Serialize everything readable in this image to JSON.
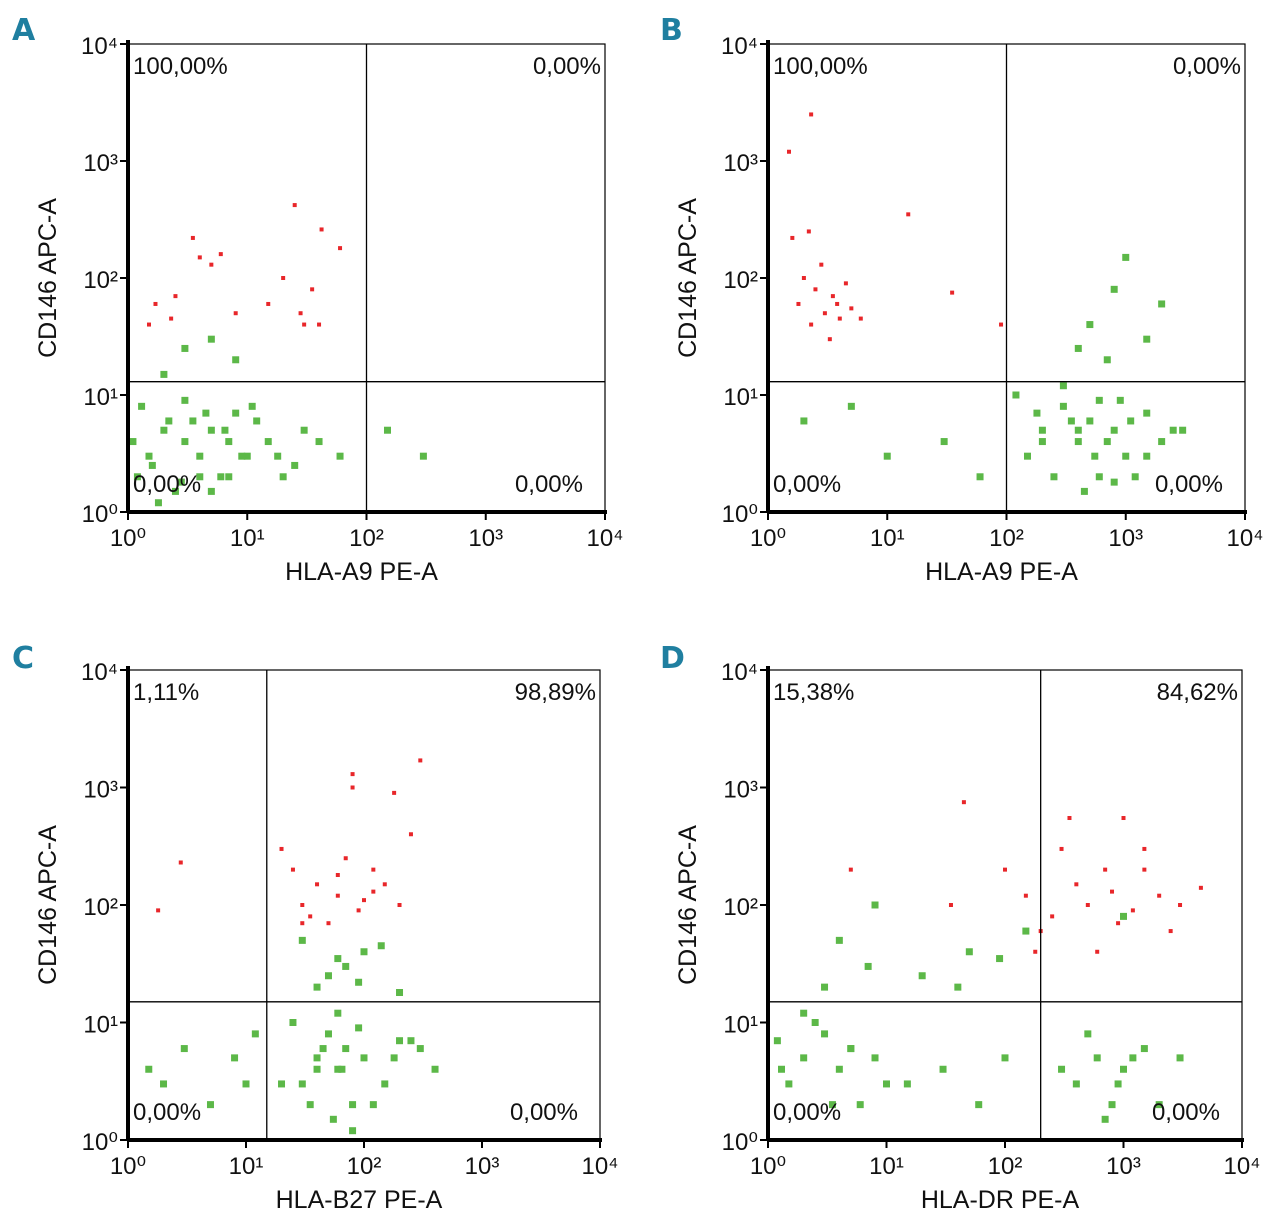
{
  "chart_data": [
    {
      "type": "scatter",
      "panel": "A",
      "xlabel": "HLA-A9 PE-A",
      "ylabel": "CD146 APC-A",
      "xscale": "log",
      "yscale": "log",
      "xlim": [
        1,
        10000
      ],
      "ylim": [
        1,
        10000
      ],
      "xticks": [
        {
          "value": 1,
          "label": "10⁰"
        },
        {
          "value": 10,
          "label": "10¹"
        },
        {
          "value": 100,
          "label": "10²"
        },
        {
          "value": 1000,
          "label": "10³"
        },
        {
          "value": 10000,
          "label": "10⁴"
        }
      ],
      "yticks": [
        {
          "value": 1,
          "label": "10⁰"
        },
        {
          "value": 10,
          "label": "10¹"
        },
        {
          "value": 100,
          "label": "10²"
        },
        {
          "value": 1000,
          "label": "10³"
        },
        {
          "value": 10000,
          "label": "10⁴"
        }
      ],
      "gate_x": 100,
      "gate_y": 13,
      "quadrant_labels": {
        "upper_left": "100,00%",
        "upper_right": "0,00%",
        "lower_left": "0,00%",
        "lower_right": "0,00%"
      },
      "series": [
        {
          "color": "#5cb848",
          "x": [
            1.2,
            1.5,
            2,
            2.5,
            3,
            3.5,
            4,
            5,
            6,
            7,
            8,
            10,
            1.3,
            1.8,
            2.2,
            3,
            4,
            5,
            6.5,
            9,
            12,
            15,
            20,
            30,
            1.1,
            1.6,
            2.8,
            4.5,
            7,
            11,
            18,
            25,
            40,
            60,
            3,
            5,
            2,
            8,
            150,
            300
          ],
          "y": [
            2,
            3,
            5,
            1.5,
            4,
            6,
            3,
            5,
            2,
            4,
            7,
            3,
            8,
            1.2,
            6,
            9,
            2,
            1.5,
            5,
            3,
            6,
            4,
            2,
            5,
            4,
            2.5,
            1.8,
            7,
            2,
            8,
            3,
            2.5,
            4,
            3,
            25,
            30,
            15,
            20,
            5,
            3
          ]
        },
        {
          "color": "#e8262a",
          "x": [
            1.7,
            2.5,
            3.5,
            4,
            5,
            6,
            8,
            15,
            20,
            25,
            28,
            30,
            35,
            40,
            42,
            60,
            1.5,
            2.3
          ],
          "y": [
            60,
            70,
            220,
            150,
            130,
            160,
            50,
            60,
            100,
            420,
            50,
            40,
            80,
            40,
            260,
            180,
            40,
            45
          ]
        }
      ]
    },
    {
      "type": "scatter",
      "panel": "B",
      "xlabel": "HLA-A9 PE-A",
      "ylabel": "CD146 APC-A",
      "xscale": "log",
      "yscale": "log",
      "xlim": [
        1,
        10000
      ],
      "ylim": [
        1,
        10000
      ],
      "xticks": [
        {
          "value": 1,
          "label": "10⁰"
        },
        {
          "value": 10,
          "label": "10¹"
        },
        {
          "value": 100,
          "label": "10²"
        },
        {
          "value": 1000,
          "label": "10³"
        },
        {
          "value": 10000,
          "label": "10⁴"
        }
      ],
      "yticks": [
        {
          "value": 1,
          "label": "10⁰"
        },
        {
          "value": 10,
          "label": "10¹"
        },
        {
          "value": 100,
          "label": "10²"
        },
        {
          "value": 1000,
          "label": "10³"
        },
        {
          "value": 10000,
          "label": "10⁴"
        }
      ],
      "gate_x": 100,
      "gate_y": 13,
      "quadrant_labels": {
        "upper_left": "100,00%",
        "upper_right": "0,00%",
        "lower_left": "0,00%",
        "lower_right": "0,00%"
      },
      "series": [
        {
          "color": "#5cb848",
          "x": [
            150,
            200,
            300,
            400,
            500,
            600,
            800,
            1000,
            1500,
            2000,
            120,
            250,
            350,
            450,
            700,
            900,
            1200,
            2500,
            180,
            550,
            800,
            300,
            1100,
            400,
            600,
            200,
            1500,
            3000,
            5,
            10,
            30,
            60,
            2,
            500,
            800,
            1500,
            2000,
            1000,
            700,
            400
          ],
          "y": [
            3,
            5,
            8,
            4,
            6,
            2,
            5,
            3,
            7,
            4,
            10,
            2,
            6,
            1.5,
            4,
            9,
            2,
            5,
            7,
            3,
            1.8,
            12,
            6,
            5,
            9,
            4,
            3,
            5,
            8,
            3,
            4,
            2,
            6,
            40,
            80,
            30,
            60,
            150,
            20,
            25
          ]
        },
        {
          "color": "#e8262a",
          "x": [
            1.6,
            1.8,
            2,
            2.3,
            2.5,
            2.8,
            3,
            3.3,
            3.5,
            4,
            4.5,
            5,
            6,
            2.2,
            3.8,
            2.3,
            1.5,
            15,
            35,
            90
          ],
          "y": [
            220,
            60,
            100,
            40,
            80,
            130,
            50,
            30,
            70,
            45,
            90,
            55,
            45,
            250,
            60,
            2500,
            1200,
            350,
            75,
            40
          ]
        }
      ]
    },
    {
      "type": "scatter",
      "panel": "C",
      "xlabel": "HLA-B27 PE-A",
      "ylabel": "CD146 APC-A",
      "xscale": "log",
      "yscale": "log",
      "xlim": [
        1,
        10000
      ],
      "ylim": [
        1,
        10000
      ],
      "xticks": [
        {
          "value": 1,
          "label": "10⁰"
        },
        {
          "value": 10,
          "label": "10¹"
        },
        {
          "value": 100,
          "label": "10²"
        },
        {
          "value": 1000,
          "label": "10³"
        },
        {
          "value": 10000,
          "label": "10⁴"
        }
      ],
      "yticks": [
        {
          "value": 1,
          "label": "10⁰"
        },
        {
          "value": 10,
          "label": "10¹"
        },
        {
          "value": 100,
          "label": "10²"
        },
        {
          "value": 1000,
          "label": "10³"
        },
        {
          "value": 10000,
          "label": "10⁴"
        }
      ],
      "gate_x": 15,
      "gate_y": 15,
      "quadrant_labels": {
        "upper_left": "1,11%",
        "upper_right": "98,89%",
        "lower_left": "0,00%",
        "lower_right": "0,00%"
      },
      "series": [
        {
          "color": "#5cb848",
          "x": [
            30,
            40,
            50,
            60,
            70,
            80,
            100,
            150,
            200,
            25,
            35,
            45,
            55,
            65,
            90,
            120,
            180,
            250,
            20,
            60,
            80,
            40,
            300,
            2,
            3,
            5,
            8,
            1.5,
            10,
            12,
            50,
            70,
            100,
            40,
            200,
            30,
            60,
            90,
            140,
            400
          ],
          "y": [
            3,
            5,
            8,
            4,
            6,
            2,
            5,
            3,
            7,
            10,
            2,
            6,
            1.5,
            4,
            9,
            2,
            5,
            7,
            3,
            12,
            1.2,
            4,
            6,
            3,
            6,
            2,
            5,
            4,
            3,
            8,
            25,
            30,
            40,
            20,
            18,
            50,
            35,
            22,
            45,
            4
          ]
        },
        {
          "color": "#e8262a",
          "x": [
            20,
            25,
            30,
            35,
            40,
            50,
            60,
            70,
            80,
            90,
            100,
            120,
            150,
            180,
            200,
            250,
            300,
            30,
            60,
            120,
            80,
            1.8,
            2.8
          ],
          "y": [
            300,
            200,
            100,
            80,
            150,
            70,
            120,
            250,
            1300,
            90,
            110,
            200,
            150,
            900,
            100,
            400,
            1700,
            70,
            180,
            130,
            1000,
            90,
            230
          ]
        }
      ]
    },
    {
      "type": "scatter",
      "panel": "D",
      "xlabel": "HLA-DR PE-A",
      "ylabel": "CD146 APC-A",
      "xscale": "log",
      "yscale": "log",
      "xlim": [
        1,
        10000
      ],
      "ylim": [
        1,
        10000
      ],
      "xticks": [
        {
          "value": 1,
          "label": "10⁰"
        },
        {
          "value": 10,
          "label": "10¹"
        },
        {
          "value": 100,
          "label": "10²"
        },
        {
          "value": 1000,
          "label": "10³"
        },
        {
          "value": 10000,
          "label": "10⁴"
        }
      ],
      "yticks": [
        {
          "value": 1,
          "label": "10⁰"
        },
        {
          "value": 10,
          "label": "10¹"
        },
        {
          "value": 100,
          "label": "10²"
        },
        {
          "value": 1000,
          "label": "10³"
        },
        {
          "value": 10000,
          "label": "10⁴"
        }
      ],
      "gate_x": 200,
      "gate_y": 15,
      "quadrant_labels": {
        "upper_left": "15,38%",
        "upper_right": "84,62%",
        "lower_left": "0,00%",
        "lower_right": "0,00%"
      },
      "series": [
        {
          "color": "#5cb848",
          "x": [
            1.5,
            2,
            3,
            4,
            5,
            6,
            8,
            10,
            1.2,
            2.5,
            3.5,
            5,
            15,
            30,
            60,
            100,
            400,
            600,
            800,
            1000,
            1500,
            500,
            700,
            900,
            1200,
            2000,
            300,
            3,
            7,
            20,
            50,
            150,
            1000,
            2,
            4,
            8,
            3000,
            1.3,
            40,
            90
          ],
          "y": [
            3,
            5,
            8,
            4,
            6,
            2,
            5,
            3,
            7,
            10,
            2,
            6,
            3,
            4,
            2,
            5,
            3,
            5,
            2,
            4,
            6,
            8,
            1.5,
            3,
            5,
            2,
            4,
            20,
            30,
            25,
            40,
            60,
            80,
            12,
            50,
            100,
            5,
            4,
            20,
            35
          ]
        },
        {
          "color": "#e8262a",
          "x": [
            100,
            150,
            200,
            250,
            300,
            400,
            500,
            600,
            700,
            800,
            1000,
            1200,
            1500,
            2000,
            2500,
            3000,
            4500,
            180,
            350,
            900,
            5,
            45,
            35,
            1500
          ],
          "y": [
            200,
            120,
            60,
            80,
            300,
            150,
            100,
            40,
            200,
            130,
            550,
            90,
            300,
            120,
            60,
            100,
            140,
            40,
            550,
            70,
            200,
            750,
            100,
            200
          ]
        }
      ]
    }
  ]
}
